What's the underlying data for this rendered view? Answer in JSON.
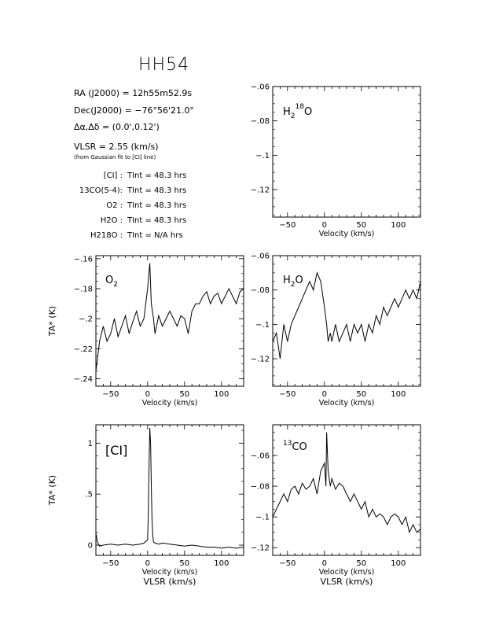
{
  "header": {
    "title": "HH54",
    "ra": "RA (J2000) = 12h55m52.9s",
    "dec": "Dec(J2000) = −76°56'21.0\"",
    "offset": "Δα,Δδ = (0.0',0.12')",
    "vlsr": "VLSR = 2.55 (km/s)",
    "vlsr_note": "(from Gaussian fit to [CI] line)",
    "integrations": [
      {
        "line": "[CI] :",
        "tint": "TInt = 48.3 hrs"
      },
      {
        "line": "13CO(5-4):",
        "tint": "TInt = 48.3 hrs"
      },
      {
        "line": "O2 :",
        "tint": "TInt = 48.3 hrs"
      },
      {
        "line": "H2O :",
        "tint": "TInt = 48.3 hrs"
      },
      {
        "line": "H218O :",
        "tint": "TInt = N/A hrs"
      }
    ]
  },
  "chart_data": [
    {
      "type": "line",
      "panel": "H2 18O",
      "label": "H218O",
      "xlabel": "Velocity (km/s)",
      "ylabel": "",
      "xlim": [
        -70,
        130
      ],
      "ylim": [
        -0.136,
        -0.06
      ],
      "xticks": [
        -50,
        0,
        50,
        100
      ],
      "yticks": [
        -0.06,
        -0.08,
        -0.1,
        -0.12
      ],
      "x": [],
      "y": []
    },
    {
      "type": "line",
      "panel": "O2",
      "label": "O2",
      "xlabel": "Velocity (km/s)",
      "ylabel": "TA* (K)",
      "xlim": [
        -70,
        130
      ],
      "ylim": [
        -0.245,
        -0.158
      ],
      "xticks": [
        -50,
        0,
        50,
        100
      ],
      "yticks": [
        -0.16,
        -0.18,
        -0.2,
        -0.22,
        -0.24
      ],
      "x": [
        -70,
        -65,
        -60,
        -55,
        -50,
        -45,
        -40,
        -35,
        -30,
        -25,
        -20,
        -15,
        -10,
        -5,
        0,
        3,
        5,
        8,
        10,
        15,
        20,
        25,
        30,
        35,
        40,
        45,
        50,
        55,
        60,
        65,
        70,
        75,
        80,
        85,
        90,
        95,
        100,
        105,
        110,
        115,
        120,
        125,
        130
      ],
      "y": [
        -0.235,
        -0.215,
        -0.205,
        -0.215,
        -0.21,
        -0.2,
        -0.212,
        -0.205,
        -0.198,
        -0.21,
        -0.202,
        -0.195,
        -0.205,
        -0.2,
        -0.18,
        -0.163,
        -0.19,
        -0.2,
        -0.21,
        -0.198,
        -0.205,
        -0.2,
        -0.195,
        -0.2,
        -0.205,
        -0.198,
        -0.2,
        -0.21,
        -0.195,
        -0.19,
        -0.19,
        -0.185,
        -0.182,
        -0.19,
        -0.185,
        -0.183,
        -0.19,
        -0.185,
        -0.18,
        -0.185,
        -0.19,
        -0.182,
        -0.18
      ]
    },
    {
      "type": "line",
      "panel": "H2O",
      "label": "H2O",
      "xlabel": "Velocity (km/s)",
      "ylabel": "",
      "xlim": [
        -70,
        130
      ],
      "ylim": [
        -0.136,
        -0.06
      ],
      "xticks": [
        -50,
        0,
        50,
        100
      ],
      "yticks": [
        -0.06,
        -0.08,
        -0.1,
        -0.12
      ],
      "x": [
        -70,
        -65,
        -60,
        -55,
        -50,
        -45,
        -40,
        -35,
        -30,
        -25,
        -20,
        -15,
        -10,
        -5,
        0,
        3,
        5,
        8,
        10,
        15,
        20,
        25,
        30,
        35,
        40,
        45,
        50,
        55,
        60,
        65,
        70,
        75,
        80,
        85,
        90,
        95,
        100,
        105,
        110,
        115,
        120,
        125,
        130
      ],
      "y": [
        -0.11,
        -0.105,
        -0.12,
        -0.1,
        -0.11,
        -0.1,
        -0.095,
        -0.09,
        -0.085,
        -0.08,
        -0.075,
        -0.08,
        -0.07,
        -0.075,
        -0.09,
        -0.1,
        -0.11,
        -0.105,
        -0.11,
        -0.1,
        -0.11,
        -0.105,
        -0.1,
        -0.11,
        -0.1,
        -0.105,
        -0.1,
        -0.11,
        -0.1,
        -0.105,
        -0.095,
        -0.1,
        -0.09,
        -0.095,
        -0.09,
        -0.085,
        -0.09,
        -0.085,
        -0.08,
        -0.085,
        -0.08,
        -0.085,
        -0.075
      ]
    },
    {
      "type": "line",
      "panel": "CI",
      "label": "[CI]",
      "xlabel": "Velocity (km/s)",
      "xlabel2": "VLSR (km/s)",
      "ylabel": "TA* (K)",
      "xlim": [
        -70,
        130
      ],
      "ylim": [
        -0.1,
        1.18
      ],
      "xticks": [
        -50,
        0,
        50,
        100
      ],
      "yticks": [
        0,
        0.5,
        1
      ],
      "x": [
        -70,
        -68,
        -65,
        -60,
        -50,
        -40,
        -30,
        -20,
        -10,
        -5,
        0,
        1,
        2,
        3,
        4,
        5,
        6,
        7,
        8,
        10,
        15,
        20,
        30,
        40,
        50,
        60,
        70,
        80,
        90,
        100,
        110,
        120,
        130
      ],
      "y": [
        0.12,
        0.03,
        -0.01,
        0.0,
        0.01,
        0.0,
        0.01,
        0.0,
        0.01,
        0.02,
        0.05,
        0.3,
        0.8,
        1.15,
        1.0,
        0.6,
        0.25,
        0.1,
        0.03,
        0.02,
        0.01,
        0.02,
        0.01,
        0.0,
        -0.01,
        0.0,
        -0.01,
        -0.02,
        -0.02,
        -0.03,
        -0.02,
        -0.03,
        -0.02
      ]
    },
    {
      "type": "line",
      "panel": "13CO",
      "label": "13CO",
      "xlabel": "Velocity (km/s)",
      "xlabel2": "VLSR (km/s)",
      "ylabel": "",
      "xlim": [
        -70,
        130
      ],
      "ylim": [
        -0.125,
        -0.04
      ],
      "xticks": [
        -50,
        0,
        50,
        100
      ],
      "yticks": [
        -0.06,
        -0.08,
        -0.1,
        -0.12
      ],
      "x": [
        -70,
        -65,
        -60,
        -55,
        -50,
        -45,
        -40,
        -35,
        -30,
        -25,
        -20,
        -15,
        -10,
        -5,
        0,
        2,
        3,
        5,
        8,
        10,
        15,
        20,
        25,
        30,
        35,
        40,
        45,
        50,
        55,
        60,
        65,
        70,
        75,
        80,
        85,
        90,
        95,
        100,
        105,
        110,
        115,
        120,
        125,
        130
      ],
      "y": [
        -0.1,
        -0.095,
        -0.09,
        -0.085,
        -0.09,
        -0.082,
        -0.08,
        -0.085,
        -0.078,
        -0.082,
        -0.08,
        -0.075,
        -0.085,
        -0.07,
        -0.065,
        -0.08,
        -0.045,
        -0.07,
        -0.08,
        -0.075,
        -0.082,
        -0.078,
        -0.08,
        -0.085,
        -0.09,
        -0.085,
        -0.09,
        -0.095,
        -0.09,
        -0.1,
        -0.095,
        -0.1,
        -0.098,
        -0.1,
        -0.105,
        -0.1,
        -0.098,
        -0.1,
        -0.105,
        -0.1,
        -0.11,
        -0.105,
        -0.11,
        -0.108
      ]
    }
  ]
}
